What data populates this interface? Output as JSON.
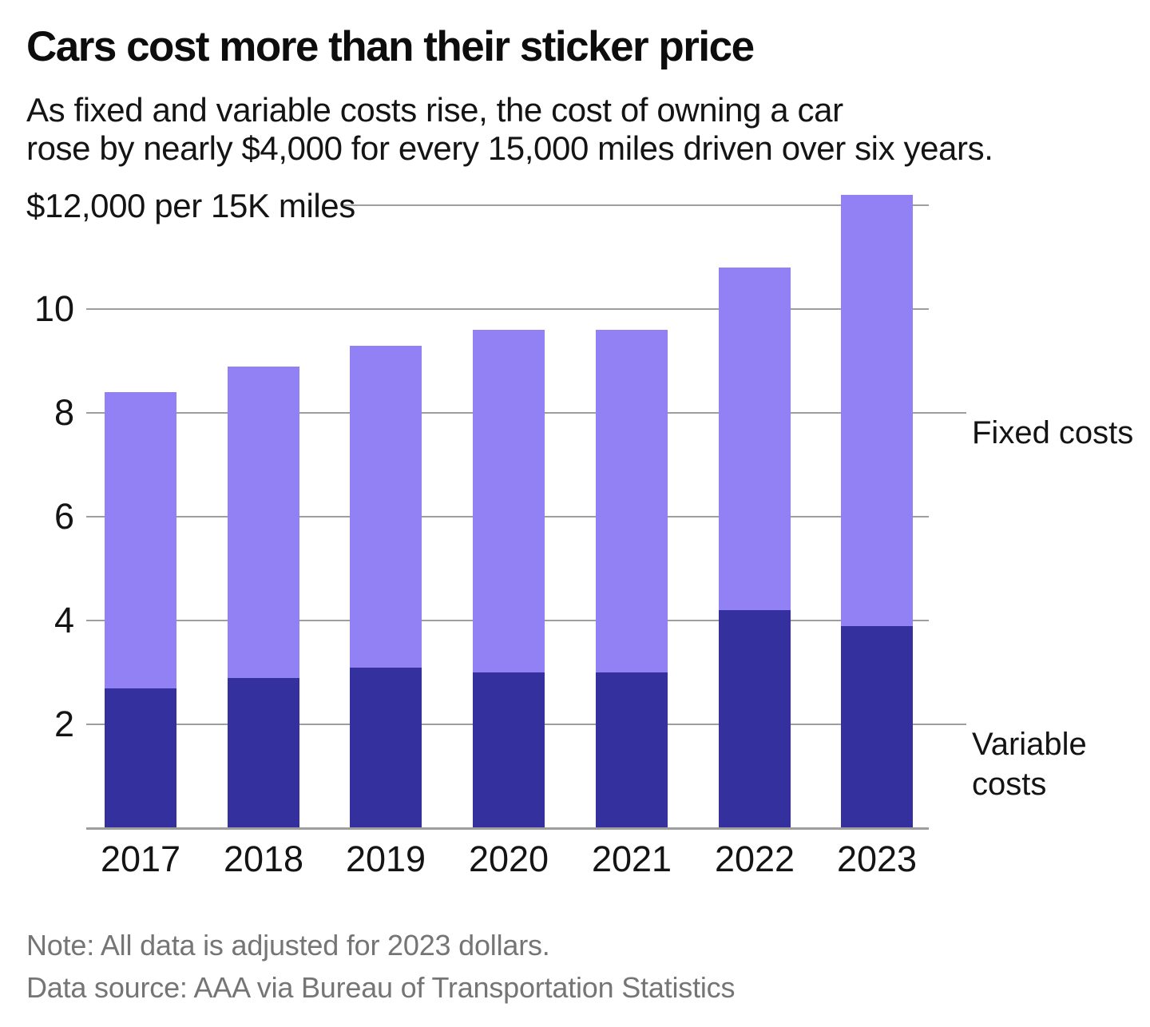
{
  "header": {
    "title": "Cars cost more than their sticker price",
    "subtitle_line1": "As fixed and variable costs rise, the cost of owning a car",
    "subtitle_line2": "rose by nearly $4,000 for every 15,000 miles driven over six years."
  },
  "chart_data": {
    "type": "bar",
    "stacked": true,
    "title": "Cars cost more than their sticker price",
    "ylabel": "$12,000 per 15K miles",
    "values_unit": "thousand dollars per 15,000 miles",
    "categories": [
      "2017",
      "2018",
      "2019",
      "2020",
      "2021",
      "2022",
      "2023"
    ],
    "series": [
      {
        "name": "Variable costs",
        "color": "#34309e",
        "values": [
          2.7,
          2.9,
          3.1,
          3.0,
          3.0,
          4.2,
          3.9
        ]
      },
      {
        "name": "Fixed costs",
        "color": "#9181f4",
        "values": [
          5.7,
          6.0,
          6.2,
          6.6,
          6.6,
          6.6,
          8.3
        ]
      }
    ],
    "totals": [
      8.4,
      8.9,
      9.3,
      9.6,
      9.6,
      10.8,
      12.2
    ],
    "y_ticks": [
      2,
      4,
      6,
      8,
      10
    ],
    "y_top_gridline_value": 12,
    "ylim": [
      0,
      12.3
    ],
    "grid": true,
    "legend_position": "right",
    "annotations": [
      {
        "label": "Fixed costs",
        "series": "Fixed costs",
        "leader_y_value": 8
      },
      {
        "label": "Variable costs",
        "series": "Variable costs",
        "leader_y_value": 2
      }
    ]
  },
  "footer": {
    "note": "Note: All data is adjusted for 2023 dollars.",
    "source": "Data source: AAA via Bureau of Transportation Statistics"
  },
  "colors": {
    "fixed_costs": "#9181f4",
    "variable_costs": "#34309e",
    "gridline": "#9e9e9e",
    "text": "#141414",
    "muted_text": "#757575",
    "background": "#ffffff"
  }
}
